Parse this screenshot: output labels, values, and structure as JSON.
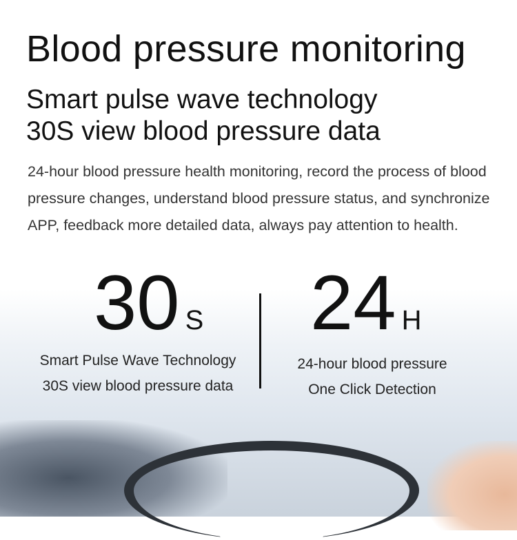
{
  "title": "Blood pressure monitoring",
  "subtitle_line1": "Smart pulse wave technology",
  "subtitle_line2": "30S view blood pressure data",
  "description": "24-hour blood pressure health monitoring, record the process of blood pressure changes, understand blood pressure status, and synchronize APP, feedback more detailed data, always pay attention to health.",
  "stats": [
    {
      "value": "30",
      "unit": "S",
      "line1": "Smart Pulse Wave Technology",
      "line2": "30S view blood pressure data"
    },
    {
      "value": "24",
      "unit": "H",
      "line1": "24-hour blood pressure",
      "line2": "One Click Detection"
    }
  ]
}
